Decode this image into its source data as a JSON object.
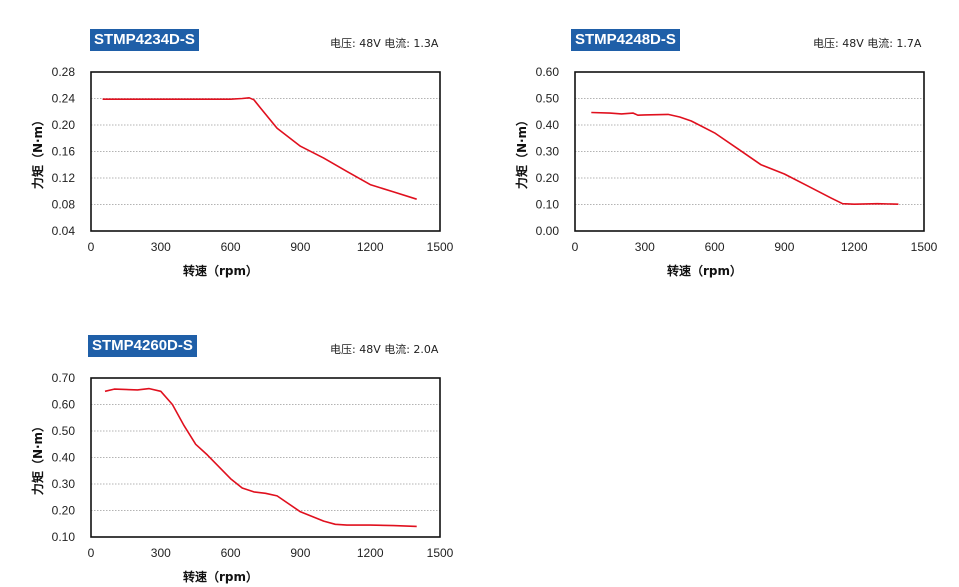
{
  "chart_data": [
    {
      "type": "line",
      "title": "STMP4234D-S",
      "spec_text": "电压: 48V  电流: 1.3A",
      "xlabel": "转速（rpm）",
      "ylabel": "力矩（N·m）",
      "xlim": [
        0,
        1500
      ],
      "ylim": [
        0.04,
        0.28
      ],
      "xticks": [
        "0",
        "300",
        "600",
        "900",
        "1200",
        "1500"
      ],
      "yticks": [
        "0.04",
        "0.08",
        "0.12",
        "0.16",
        "0.20",
        "0.24",
        "0.28"
      ],
      "grid": true,
      "series": [
        {
          "color": "#e0101e",
          "x": [
            50,
            200,
            400,
            600,
            650,
            680,
            700,
            730,
            800,
            900,
            1000,
            1100,
            1200,
            1300,
            1400
          ],
          "y": [
            0.239,
            0.239,
            0.239,
            0.239,
            0.24,
            0.241,
            0.238,
            0.225,
            0.195,
            0.168,
            0.15,
            0.13,
            0.11,
            0.099,
            0.088
          ]
        }
      ]
    },
    {
      "type": "line",
      "title": "STMP4248D-S",
      "spec_text": "电压: 48V  电流: 1.7A",
      "xlabel": "转速（rpm）",
      "ylabel": "力矩（N·m）",
      "xlim": [
        0,
        1500
      ],
      "ylim": [
        0.0,
        0.6
      ],
      "xticks": [
        "0",
        "300",
        "600",
        "900",
        "1200",
        "1500"
      ],
      "yticks": [
        "0.00",
        "0.10",
        "0.20",
        "0.30",
        "0.40",
        "0.50",
        "0.60"
      ],
      "grid": true,
      "series": [
        {
          "color": "#e0101e",
          "x": [
            70,
            150,
            200,
            250,
            270,
            300,
            400,
            450,
            500,
            600,
            700,
            800,
            900,
            1000,
            1100,
            1150,
            1200,
            1300,
            1390
          ],
          "y": [
            0.447,
            0.445,
            0.442,
            0.445,
            0.437,
            0.438,
            0.44,
            0.43,
            0.415,
            0.37,
            0.31,
            0.25,
            0.215,
            0.17,
            0.125,
            0.103,
            0.101,
            0.103,
            0.101
          ]
        }
      ]
    },
    {
      "type": "line",
      "title": "STMP4260D-S",
      "spec_text": "电压: 48V  电流: 2.0A",
      "xlabel": "转速（rpm）",
      "ylabel": "力矩（N·m）",
      "xlim": [
        0,
        1500
      ],
      "ylim": [
        0.1,
        0.7
      ],
      "xticks": [
        "0",
        "300",
        "600",
        "900",
        "1200",
        "1500"
      ],
      "yticks": [
        "0.10",
        "0.20",
        "0.30",
        "0.40",
        "0.50",
        "0.60",
        "0.70"
      ],
      "grid": true,
      "series": [
        {
          "color": "#e0101e",
          "x": [
            60,
            100,
            200,
            250,
            300,
            350,
            400,
            450,
            500,
            600,
            650,
            700,
            750,
            800,
            900,
            1000,
            1050,
            1100,
            1200,
            1300,
            1400
          ],
          "y": [
            0.65,
            0.658,
            0.655,
            0.66,
            0.65,
            0.6,
            0.52,
            0.45,
            0.41,
            0.32,
            0.285,
            0.27,
            0.265,
            0.255,
            0.195,
            0.16,
            0.148,
            0.145,
            0.145,
            0.143,
            0.14
          ]
        }
      ]
    }
  ]
}
